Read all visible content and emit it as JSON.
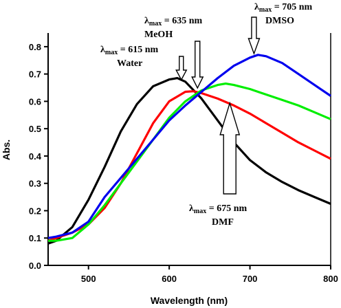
{
  "chart_data": {
    "type": "line",
    "xlabel": "Wavelength (nm)",
    "ylabel": "Abs.",
    "xlim": [
      450,
      800
    ],
    "ylim": [
      0.0,
      0.85
    ],
    "xticks": [
      500,
      600,
      700,
      800
    ],
    "yticks": [
      0.0,
      0.1,
      0.2,
      0.3,
      0.4,
      0.5,
      0.6,
      0.7,
      0.8
    ],
    "series": [
      {
        "color": "#000000",
        "x": [
          450,
          460,
          480,
          500,
          520,
          540,
          560,
          580,
          600,
          610,
          620,
          640,
          660,
          680,
          700,
          720,
          740,
          760,
          780,
          800
        ],
        "y": [
          0.08,
          0.09,
          0.14,
          0.24,
          0.36,
          0.49,
          0.59,
          0.655,
          0.68,
          0.685,
          0.672,
          0.61,
          0.53,
          0.45,
          0.385,
          0.34,
          0.305,
          0.275,
          0.25,
          0.225
        ]
      },
      {
        "color": "#ff0000",
        "x": [
          450,
          460,
          480,
          500,
          520,
          540,
          560,
          580,
          600,
          620,
          630,
          640,
          660,
          680,
          700,
          720,
          740,
          760,
          780,
          800
        ],
        "y": [
          0.09,
          0.1,
          0.12,
          0.15,
          0.21,
          0.3,
          0.41,
          0.52,
          0.6,
          0.635,
          0.637,
          0.63,
          0.61,
          0.585,
          0.555,
          0.52,
          0.485,
          0.45,
          0.42,
          0.39
        ]
      },
      {
        "color": "#00ee00",
        "x": [
          450,
          460,
          480,
          500,
          520,
          540,
          560,
          580,
          600,
          620,
          640,
          660,
          670,
          680,
          700,
          720,
          740,
          760,
          780,
          800
        ],
        "y": [
          0.09,
          0.09,
          0.1,
          0.15,
          0.22,
          0.3,
          0.38,
          0.46,
          0.54,
          0.6,
          0.64,
          0.66,
          0.665,
          0.66,
          0.645,
          0.625,
          0.605,
          0.585,
          0.56,
          0.535
        ]
      },
      {
        "color": "#0000ee",
        "x": [
          450,
          460,
          480,
          500,
          520,
          540,
          560,
          580,
          600,
          620,
          640,
          660,
          680,
          700,
          710,
          720,
          740,
          760,
          780,
          800
        ],
        "y": [
          0.1,
          0.105,
          0.12,
          0.16,
          0.25,
          0.32,
          0.39,
          0.46,
          0.53,
          0.585,
          0.635,
          0.685,
          0.73,
          0.76,
          0.77,
          0.765,
          0.74,
          0.7,
          0.66,
          0.62
        ]
      }
    ],
    "annotations": [
      {
        "lambda_symbol": "λ",
        "subscript": "max",
        "text": " = 615 nm",
        "solvent": "Water",
        "x": 615,
        "arrow": "down"
      },
      {
        "lambda_symbol": "λ",
        "subscript": "max",
        "text": " = 635 nm",
        "solvent": "MeOH",
        "x": 635,
        "arrow": "down"
      },
      {
        "lambda_symbol": "λ",
        "subscript": "max",
        "text": " = 705 nm",
        "solvent": "DMSO",
        "x": 705,
        "arrow": "down"
      },
      {
        "lambda_symbol": "λ",
        "subscript": "max",
        "text": " = 675 nm",
        "solvent": "DMF",
        "x": 675,
        "arrow": "up"
      }
    ]
  }
}
